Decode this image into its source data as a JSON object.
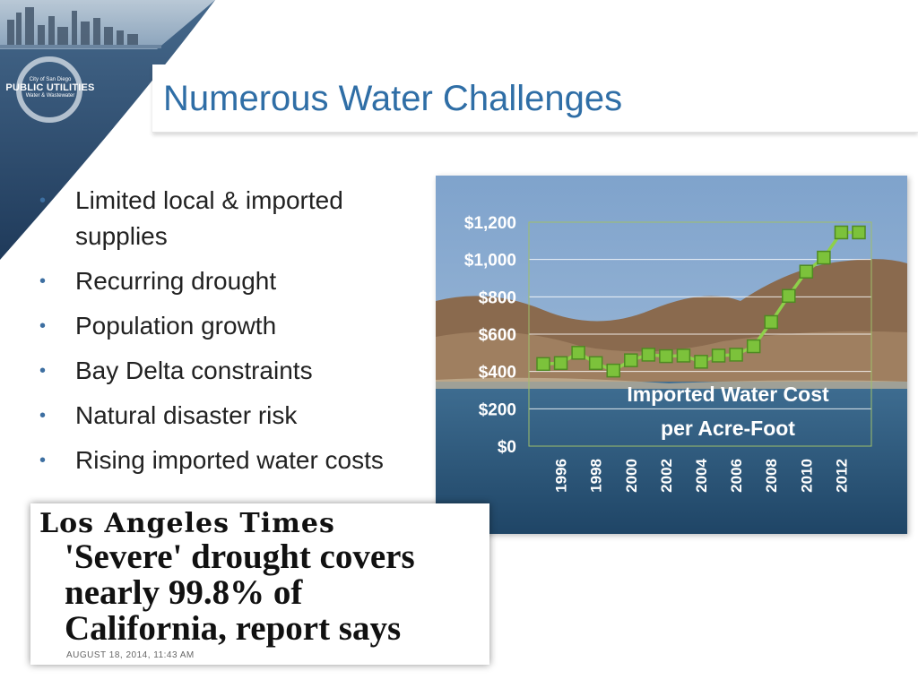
{
  "logo": {
    "line1": "City of San Diego",
    "line2": "PUBLIC UTILITIES",
    "line3": "Water & Wastewater"
  },
  "title": "Numerous Water Challenges",
  "bullets": [
    "Limited local & imported supplies",
    "Recurring drought",
    "Population growth",
    "Bay Delta constraints",
    "Natural disaster risk",
    "Rising imported water costs"
  ],
  "clipping": {
    "paper": "Los Angeles Times",
    "headline_lines": [
      "'Severe' drought covers",
      "nearly 99.8% of",
      "California, report says"
    ],
    "dateline": "AUGUST 18, 2014, 11:43 AM"
  },
  "chart_data": {
    "type": "line",
    "title": "Imported Water Cost per Acre-Foot",
    "title_lines": [
      "Imported Water Cost",
      "per Acre-Foot"
    ],
    "x": [
      1995,
      1996,
      1997,
      1998,
      1999,
      2000,
      2001,
      2002,
      2003,
      2004,
      2005,
      2006,
      2007,
      2008,
      2009,
      2010,
      2011,
      2012,
      2013
    ],
    "x_tick_labels": [
      "1996",
      "1998",
      "2000",
      "2002",
      "2004",
      "2006",
      "2008",
      "2010",
      "2012"
    ],
    "x_tick_values": [
      1996,
      1998,
      2000,
      2002,
      2004,
      2006,
      2008,
      2010,
      2012
    ],
    "series": [
      {
        "values": [
          440,
          445,
          500,
          445,
          405,
          460,
          490,
          482,
          485,
          452,
          485,
          490,
          535,
          665,
          805,
          935,
          1010,
          1145,
          1145
        ]
      }
    ],
    "y_tick_labels": [
      "$0",
      "$200",
      "$400",
      "$600",
      "$800",
      "$1,000",
      "$1,200"
    ],
    "y_tick_values": [
      0,
      200,
      400,
      600,
      800,
      1000,
      1200
    ],
    "ylim": [
      0,
      1200
    ],
    "grid": true,
    "colors": {
      "line": "#8ed04a",
      "marker": "#7cc23b",
      "text": "#ffffff",
      "grid": "#ffffff"
    }
  }
}
